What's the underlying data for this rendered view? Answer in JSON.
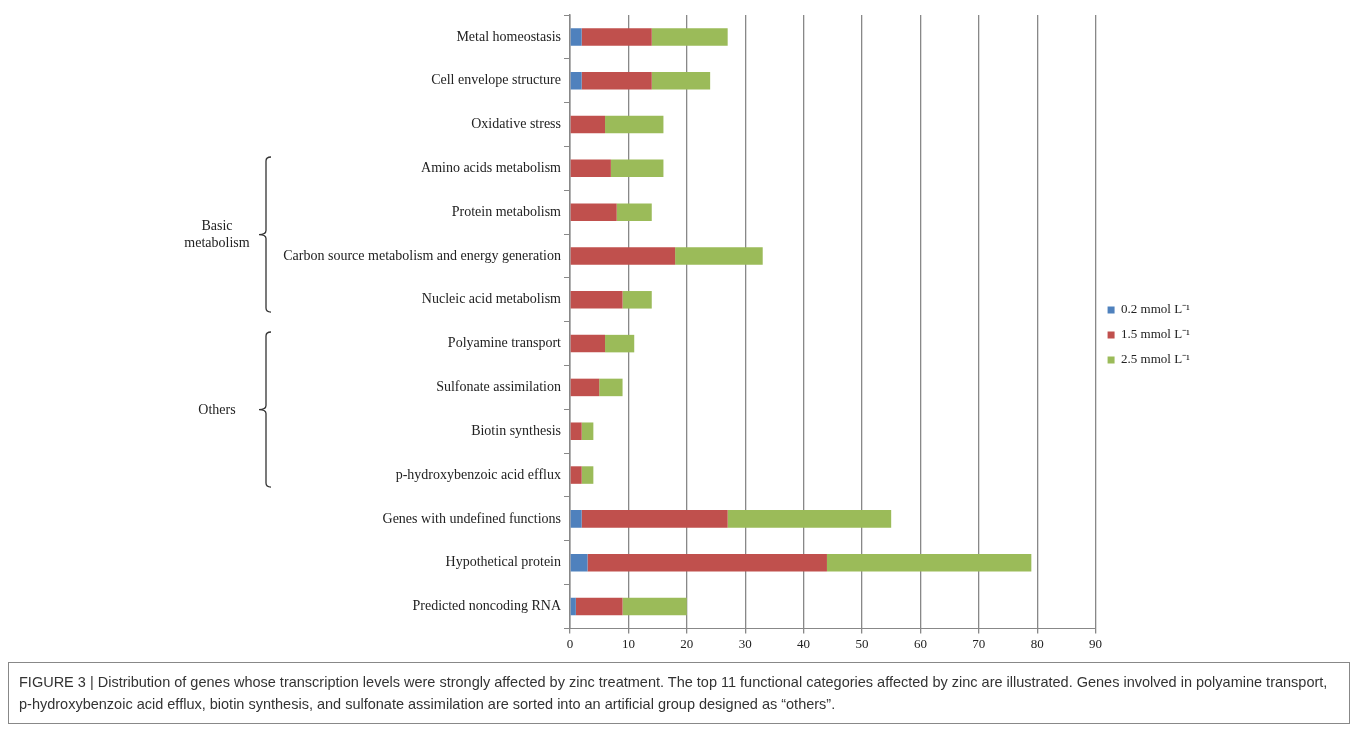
{
  "chart_data": {
    "type": "bar",
    "orientation": "horizontal",
    "stacked": true,
    "categories": [
      "Metal homeostasis",
      "Cell envelope structure",
      "Oxidative stress",
      "Amino acids metabolism",
      "Protein metabolism",
      "Carbon source metabolism and energy generation",
      "Nucleic acid metabolism",
      "Polyamine transport",
      "Sulfonate assimilation",
      "Biotin synthesis",
      "p-hydroxybenzoic acid efflux",
      "Genes with undefined functions",
      "Hypothetical protein",
      "Predicted noncoding RNA"
    ],
    "series": [
      {
        "name": "0.2 mmol L⁻¹",
        "color": "#4f81bd",
        "values": [
          2,
          2,
          0,
          0,
          0,
          0,
          0,
          0,
          0,
          0,
          0,
          2,
          3,
          1
        ]
      },
      {
        "name": "1.5 mmol L⁻¹",
        "color": "#c0504d",
        "values": [
          12,
          12,
          6,
          7,
          8,
          18,
          9,
          6,
          5,
          2,
          2,
          25,
          41,
          8
        ]
      },
      {
        "name": "2.5 mmol L⁻¹",
        "color": "#9bbb59",
        "values": [
          13,
          10,
          10,
          9,
          6,
          15,
          5,
          5,
          4,
          2,
          2,
          28,
          35,
          11
        ]
      }
    ],
    "xlim": [
      0,
      90
    ],
    "xticks": [
      0,
      10,
      20,
      30,
      40,
      50,
      60,
      70,
      80,
      90
    ],
    "grid": "x",
    "legend": "right",
    "annotations": [
      "Basic metabolism",
      "Others",
      "FIGURE 3 | Distribution of genes whose transcription levels were strongly affected by zinc treatment. The top 11 functional categories affected by zinc are illustrated. Genes involved in polyamine transport, p-hydroxybenzoic acid efflux, biotin synthesis, and sulfonate assimilation are sorted into an artificial group designed as “others”."
    ]
  }
}
